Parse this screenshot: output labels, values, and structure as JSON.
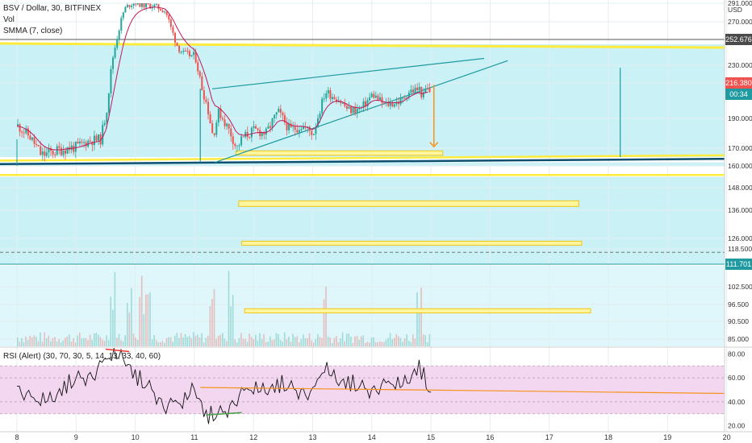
{
  "legend": {
    "symbol": "BSV / Dollar, 30, BITFINEX",
    "volume": "Vol",
    "smma": "SMMA (7, close)"
  },
  "rsi_legend": "RSI (Alert) (30, 70, 30, 5, 14, 13, 33, 40, 60)",
  "price_tags": {
    "resistance": "252.676",
    "last": "216.380",
    "countdown": "00:34",
    "support": "111.701"
  },
  "colors": {
    "channel_fill": "#c9f1f6",
    "yellow": "#ffeb3b",
    "teal": "#1e9aa0",
    "navy": "#0d4f6e",
    "orange": "#f7931a",
    "rsi_band": "#f3d6f0",
    "candle_up": "#26a69a",
    "candle_down": "#ef5350",
    "tag_dark": "#4a4a4a",
    "tag_red": "#ef5350",
    "tag_teal": "#1e9aa0"
  },
  "chart_data": {
    "type": "candlestick",
    "symbol": "BSV / Dollar",
    "timeframe": "30",
    "exchange": "BITFINEX",
    "price_axis": {
      "unit": "USD",
      "ticks": [
        "85.000",
        "90.500",
        "96.500",
        "102.500",
        "111.701",
        "118.500",
        "126.000",
        "136.000",
        "148.000",
        "160.000",
        "170.000",
        "190.000",
        "216.380",
        "230.000",
        "252.676",
        "270.000",
        "291.000"
      ],
      "range": [
        82,
        292
      ]
    },
    "x_axis": {
      "ticks": [
        "8",
        "9",
        "10",
        "11",
        "12",
        "13",
        "14",
        "15",
        "16",
        "17",
        "18",
        "19",
        "20"
      ]
    },
    "close_path": [
      [
        8.0,
        185
      ],
      [
        8.2,
        178
      ],
      [
        8.4,
        166
      ],
      [
        8.6,
        168
      ],
      [
        8.8,
        170
      ],
      [
        9.0,
        171
      ],
      [
        9.2,
        175
      ],
      [
        9.4,
        176
      ],
      [
        9.5,
        195
      ],
      [
        9.6,
        235
      ],
      [
        9.7,
        260
      ],
      [
        9.8,
        284
      ],
      [
        9.9,
        290
      ],
      [
        10.0,
        292
      ],
      [
        10.1,
        289
      ],
      [
        10.3,
        288
      ],
      [
        10.5,
        282
      ],
      [
        10.6,
        262
      ],
      [
        10.7,
        247
      ],
      [
        10.8,
        240
      ],
      [
        11.0,
        238
      ],
      [
        11.1,
        215
      ],
      [
        11.2,
        200
      ],
      [
        11.3,
        178
      ],
      [
        11.4,
        195
      ],
      [
        11.6,
        180
      ],
      [
        11.7,
        170
      ],
      [
        11.8,
        177
      ],
      [
        12.0,
        182
      ],
      [
        12.2,
        180
      ],
      [
        12.4,
        195
      ],
      [
        12.6,
        182
      ],
      [
        12.8,
        185
      ],
      [
        13.0,
        180
      ],
      [
        13.2,
        210
      ],
      [
        13.4,
        205
      ],
      [
        13.6,
        196
      ],
      [
        13.8,
        197
      ],
      [
        14.0,
        208
      ],
      [
        14.2,
        200
      ],
      [
        14.4,
        202
      ],
      [
        14.5,
        203
      ],
      [
        14.6,
        210
      ],
      [
        14.8,
        212
      ],
      [
        14.85,
        205
      ],
      [
        14.9,
        212
      ],
      [
        15.0,
        209
      ]
    ],
    "rsi": {
      "levels": [
        30,
        40,
        60,
        70
      ],
      "ticks": [
        "80.00",
        "60.00",
        "40.00",
        "20.00"
      ],
      "range": [
        15,
        85
      ],
      "path": [
        [
          8.0,
          52
        ],
        [
          8.3,
          38
        ],
        [
          8.6,
          45
        ],
        [
          9.0,
          60
        ],
        [
          9.3,
          62
        ],
        [
          9.6,
          78
        ],
        [
          9.8,
          80
        ],
        [
          10.0,
          62
        ],
        [
          10.3,
          50
        ],
        [
          10.5,
          35
        ],
        [
          10.8,
          38
        ],
        [
          11.0,
          55
        ],
        [
          11.2,
          28
        ],
        [
          11.5,
          32
        ],
        [
          11.8,
          45
        ],
        [
          12.0,
          50
        ],
        [
          12.5,
          55
        ],
        [
          13.0,
          45
        ],
        [
          13.2,
          68
        ],
        [
          13.5,
          58
        ],
        [
          14.0,
          50
        ],
        [
          14.5,
          55
        ],
        [
          14.8,
          70
        ],
        [
          15.0,
          48
        ]
      ]
    },
    "volume_spikes": [
      9.6,
      9.9,
      10.1,
      10.2,
      11.3,
      11.6,
      13.2,
      14.8
    ],
    "annotations": [
      {
        "type": "horizontal_line",
        "price": 252.676,
        "label": "252.676"
      },
      {
        "type": "horizontal_line",
        "price": 111.701,
        "label": "111.701"
      },
      {
        "type": "rising_wedge",
        "start_date": 11.3,
        "end_date": 15.8
      }
    ],
    "grid": true
  }
}
